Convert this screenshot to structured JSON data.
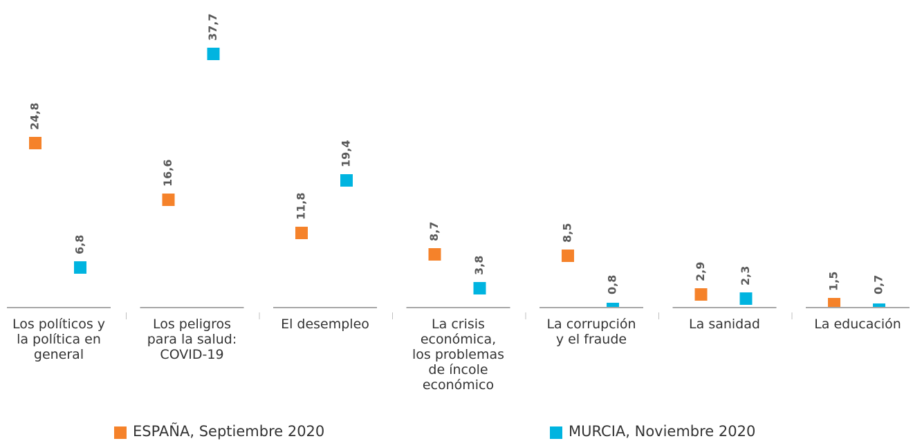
{
  "chart_data": {
    "type": "dot",
    "categories": [
      "Los políticos y\nla política en\ngeneral",
      "Los peligros\npara la salud:\nCOVID-19",
      "El desempleo",
      "La crisis\neconómica,\nlos problemas\nde íncole\neconómico",
      "La corrupción\ny el fraude",
      "La sanidad",
      "La educación"
    ],
    "series": [
      {
        "name": "ESPAÑA, Septiembre 2020",
        "color": "#f5822a",
        "values": [
          24.8,
          16.6,
          11.8,
          8.7,
          8.5,
          2.9,
          1.5
        ],
        "value_labels": [
          "24,8",
          "16,6",
          "11,8",
          "8,7",
          "8,5",
          "2,9",
          "1,5"
        ]
      },
      {
        "name": "MURCIA, Noviembre 2020",
        "color": "#00b4e0",
        "values": [
          6.8,
          37.7,
          19.4,
          3.8,
          0.8,
          2.3,
          0.7
        ],
        "value_labels": [
          "6,8",
          "37,7",
          "19,4",
          "3,8",
          "0,8",
          "2,3",
          "0,7"
        ]
      }
    ]
  }
}
